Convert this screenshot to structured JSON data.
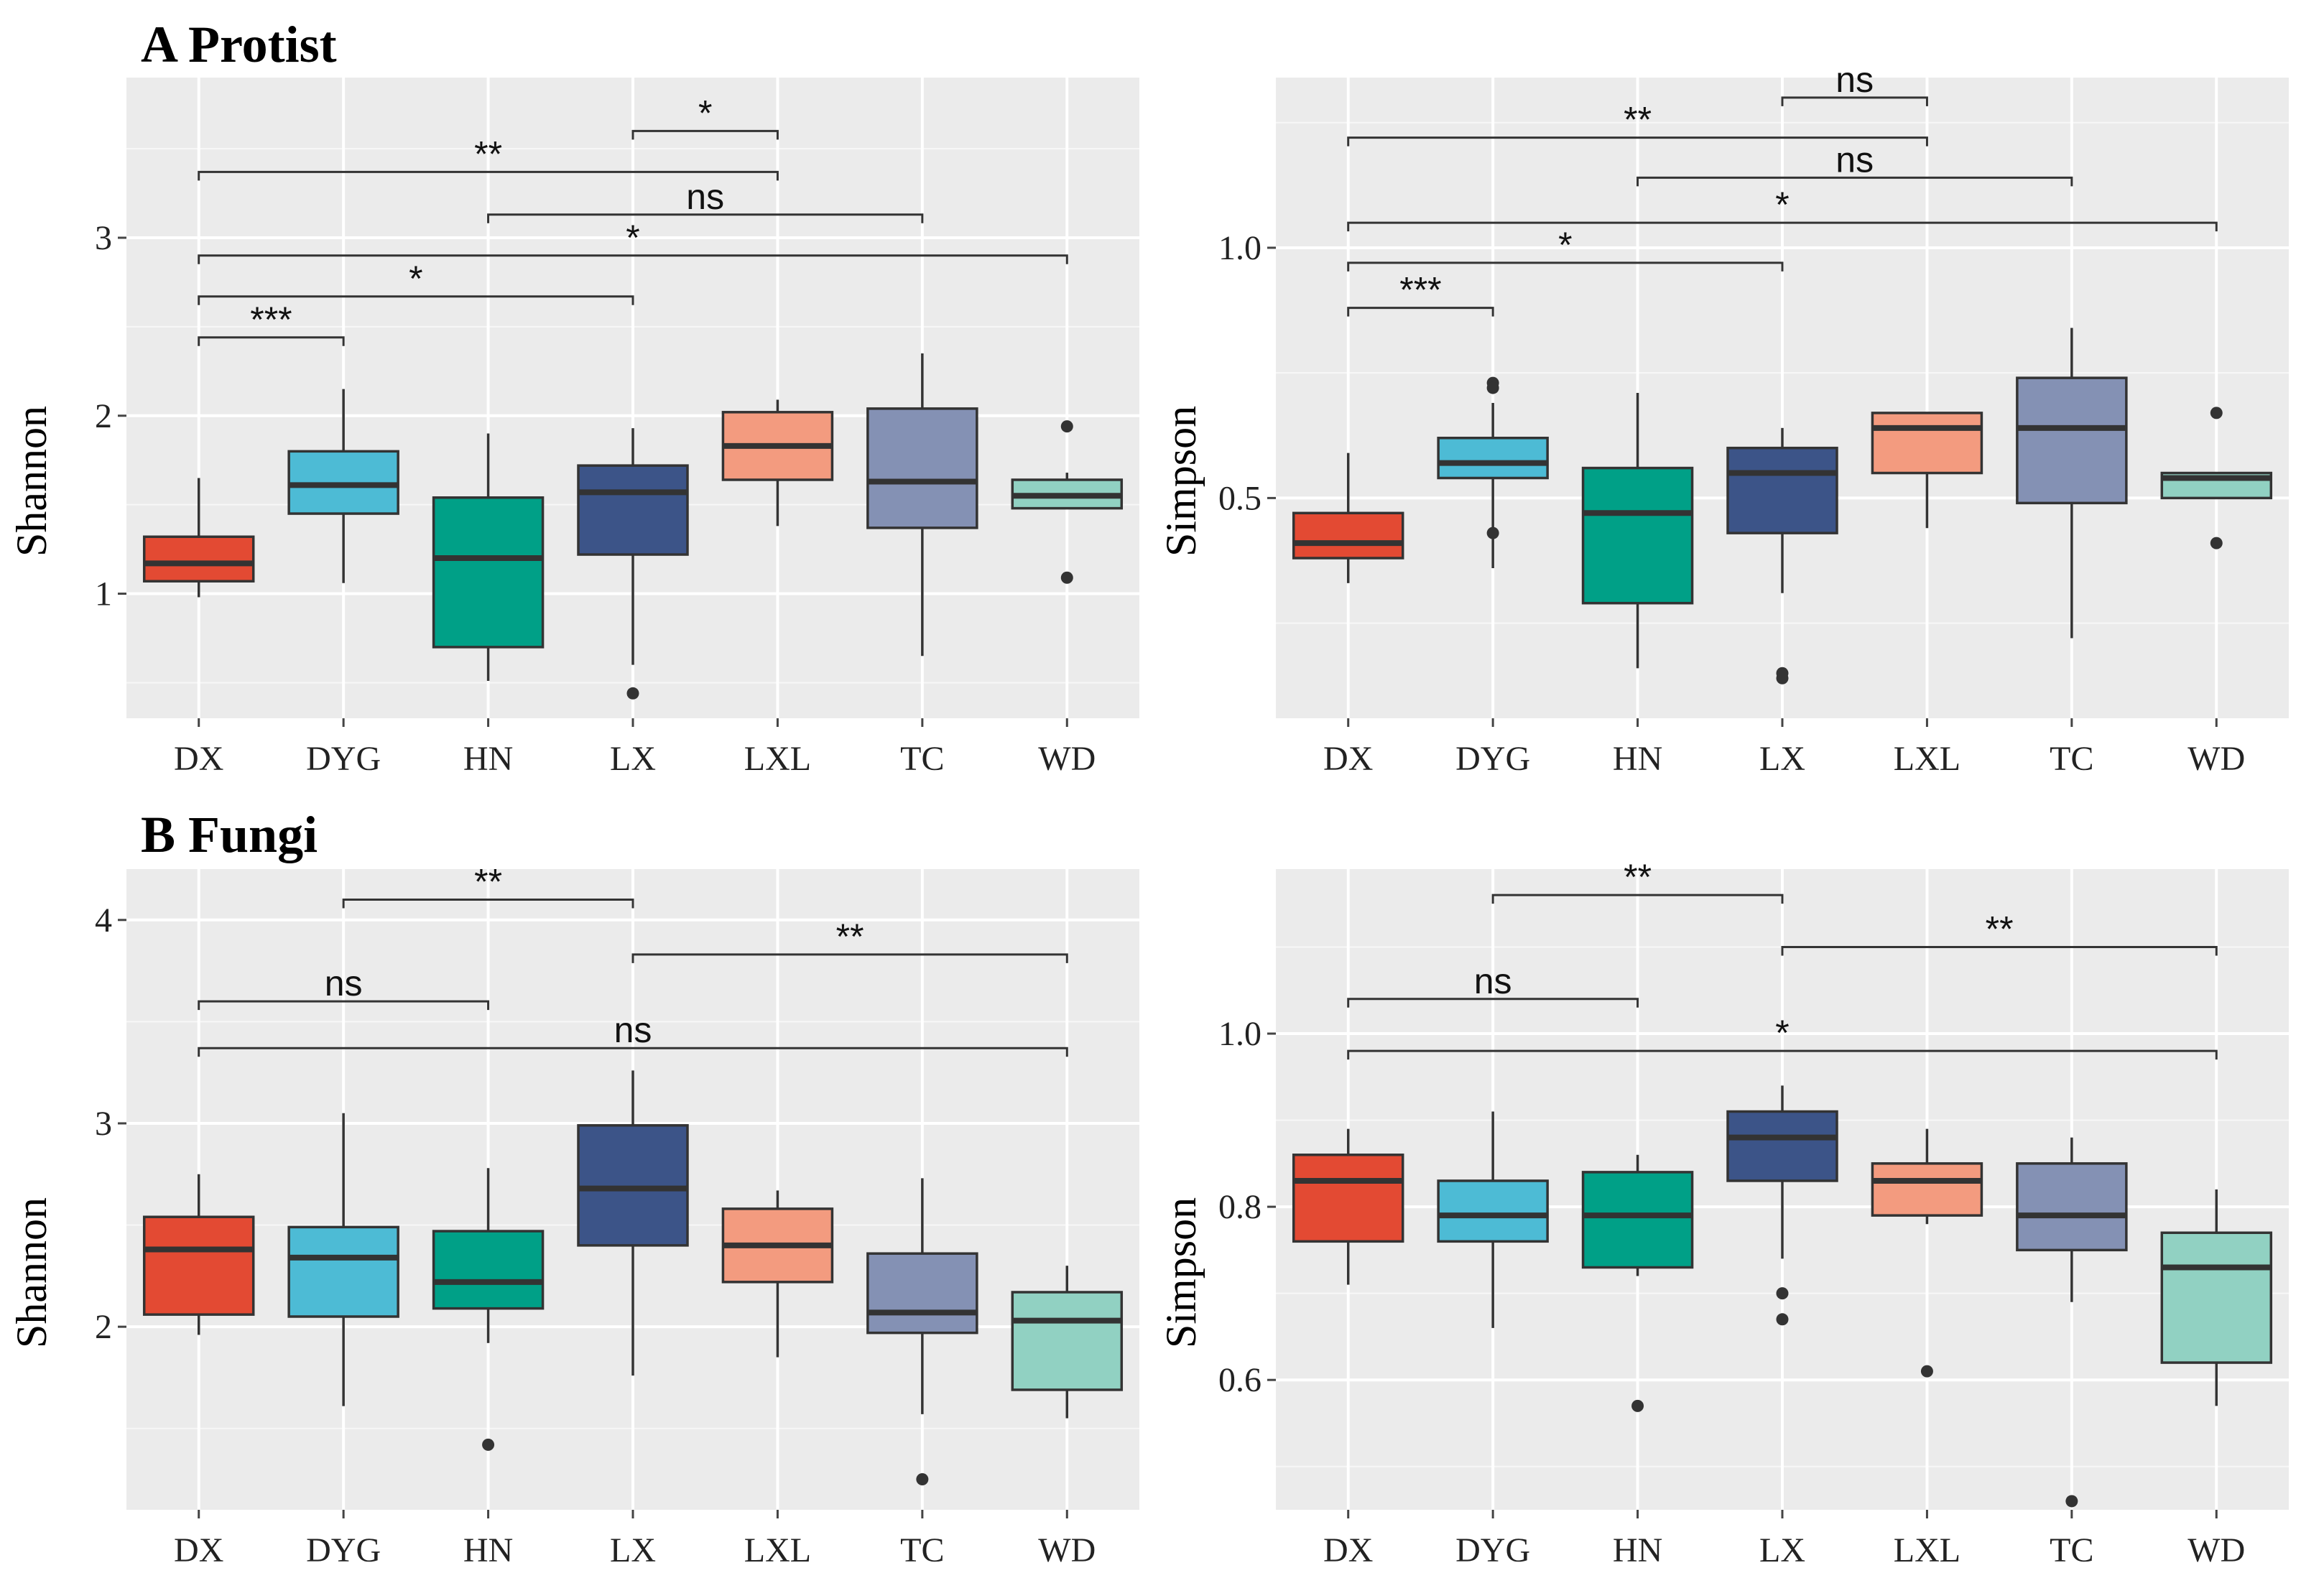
{
  "figure": {
    "sections": [
      {
        "label": "A Protist"
      },
      {
        "label": "B Fungi"
      }
    ]
  },
  "chart_data": [
    {
      "type": "boxplot",
      "panel": "A Protist",
      "ylabel": "Shannon",
      "ylim": [
        0.3,
        3.9
      ],
      "yticks": [
        1,
        2,
        3
      ],
      "grid": true,
      "categories": [
        "DX",
        "DYG",
        "HN",
        "LX",
        "LXL",
        "TC",
        "WD"
      ],
      "colors": [
        "#E34A33",
        "#4DBBD5",
        "#00A087",
        "#3C5488",
        "#F39B7F",
        "#8491B4",
        "#91D1C2"
      ],
      "boxes": [
        {
          "min": 0.98,
          "q1": 1.07,
          "median": 1.17,
          "q3": 1.32,
          "max": 1.65,
          "outliers": []
        },
        {
          "min": 1.06,
          "q1": 1.45,
          "median": 1.61,
          "q3": 1.8,
          "max": 2.15,
          "outliers": []
        },
        {
          "min": 0.51,
          "q1": 0.7,
          "median": 1.2,
          "q3": 1.54,
          "max": 1.9,
          "outliers": []
        },
        {
          "min": 0.6,
          "q1": 1.22,
          "median": 1.57,
          "q3": 1.72,
          "max": 1.93,
          "outliers": [
            0.44
          ]
        },
        {
          "min": 1.38,
          "q1": 1.64,
          "median": 1.83,
          "q3": 2.02,
          "max": 2.09,
          "outliers": []
        },
        {
          "min": 0.65,
          "q1": 1.37,
          "median": 1.63,
          "q3": 2.04,
          "max": 2.35,
          "outliers": []
        },
        {
          "min": 1.48,
          "q1": 1.48,
          "median": 1.55,
          "q3": 1.64,
          "max": 1.68,
          "outliers": [
            1.94,
            1.09
          ]
        }
      ],
      "comparisons": [
        {
          "from": "LX",
          "to": "LXL",
          "label": "*",
          "y": 3.6
        },
        {
          "from": "DX",
          "to": "LXL",
          "label": "**",
          "y": 3.37
        },
        {
          "from": "HN",
          "to": "TC",
          "label": "ns",
          "y": 3.13
        },
        {
          "from": "DX",
          "to": "WD",
          "label": "*",
          "y": 2.9
        },
        {
          "from": "DX",
          "to": "LX",
          "label": "*",
          "y": 2.67
        },
        {
          "from": "DX",
          "to": "DYG",
          "label": "***",
          "y": 2.44
        }
      ]
    },
    {
      "type": "boxplot",
      "panel": "A Protist",
      "ylabel": "Simpson",
      "ylim": [
        0.06,
        1.34
      ],
      "yticks": [
        0.5,
        1.0
      ],
      "ytick_labels": [
        "0.5",
        "1.0"
      ],
      "grid": true,
      "categories": [
        "DX",
        "DYG",
        "HN",
        "LX",
        "LXL",
        "TC",
        "WD"
      ],
      "colors": [
        "#E34A33",
        "#4DBBD5",
        "#00A087",
        "#3C5488",
        "#F39B7F",
        "#8491B4",
        "#91D1C2"
      ],
      "boxes": [
        {
          "min": 0.33,
          "q1": 0.38,
          "median": 0.41,
          "q3": 0.47,
          "max": 0.59,
          "outliers": []
        },
        {
          "min": 0.36,
          "q1": 0.54,
          "median": 0.57,
          "q3": 0.62,
          "max": 0.69,
          "outliers": [
            0.73,
            0.72,
            0.43
          ]
        },
        {
          "min": 0.16,
          "q1": 0.29,
          "median": 0.47,
          "q3": 0.56,
          "max": 0.71,
          "outliers": []
        },
        {
          "min": 0.31,
          "q1": 0.43,
          "median": 0.55,
          "q3": 0.6,
          "max": 0.64,
          "outliers": [
            0.15,
            0.14
          ]
        },
        {
          "min": 0.44,
          "q1": 0.55,
          "median": 0.64,
          "q3": 0.67,
          "max": 0.67,
          "outliers": []
        },
        {
          "min": 0.22,
          "q1": 0.49,
          "median": 0.64,
          "q3": 0.74,
          "max": 0.84,
          "outliers": []
        },
        {
          "min": 0.5,
          "q1": 0.5,
          "median": 0.54,
          "q3": 0.55,
          "max": 0.55,
          "outliers": [
            0.67,
            0.41
          ]
        }
      ],
      "comparisons": [
        {
          "from": "LX",
          "to": "LXL",
          "label": "ns",
          "y": 1.3
        },
        {
          "from": "DX",
          "to": "LXL",
          "label": "**",
          "y": 1.22
        },
        {
          "from": "HN",
          "to": "TC",
          "label": "ns",
          "y": 1.14
        },
        {
          "from": "DX",
          "to": "WD",
          "label": "*",
          "y": 1.05
        },
        {
          "from": "DX",
          "to": "LX",
          "label": "*",
          "y": 0.97
        },
        {
          "from": "DX",
          "to": "DYG",
          "label": "***",
          "y": 0.88
        }
      ]
    },
    {
      "type": "boxplot",
      "panel": "B Fungi",
      "ylabel": "Shannon",
      "ylim": [
        1.1,
        4.25
      ],
      "yticks": [
        2,
        3,
        4
      ],
      "grid": true,
      "categories": [
        "DX",
        "DYG",
        "HN",
        "LX",
        "LXL",
        "TC",
        "WD"
      ],
      "colors": [
        "#E34A33",
        "#4DBBD5",
        "#00A087",
        "#3C5488",
        "#F39B7F",
        "#8491B4",
        "#91D1C2"
      ],
      "boxes": [
        {
          "min": 1.96,
          "q1": 2.06,
          "median": 2.38,
          "q3": 2.54,
          "max": 2.75,
          "outliers": []
        },
        {
          "min": 1.61,
          "q1": 2.05,
          "median": 2.34,
          "q3": 2.49,
          "max": 3.05,
          "outliers": []
        },
        {
          "min": 1.92,
          "q1": 2.09,
          "median": 2.22,
          "q3": 2.47,
          "max": 2.78,
          "outliers": [
            1.42
          ]
        },
        {
          "min": 1.76,
          "q1": 2.4,
          "median": 2.68,
          "q3": 2.99,
          "max": 3.26,
          "outliers": []
        },
        {
          "min": 1.85,
          "q1": 2.22,
          "median": 2.4,
          "q3": 2.58,
          "max": 2.67,
          "outliers": []
        },
        {
          "min": 1.57,
          "q1": 1.97,
          "median": 2.07,
          "q3": 2.36,
          "max": 2.73,
          "outliers": [
            1.25
          ]
        },
        {
          "min": 1.55,
          "q1": 1.69,
          "median": 2.03,
          "q3": 2.17,
          "max": 2.3,
          "outliers": []
        }
      ],
      "comparisons": [
        {
          "from": "DYG",
          "to": "LX",
          "label": "**",
          "y": 4.1
        },
        {
          "from": "LX",
          "to": "WD",
          "label": "**",
          "y": 3.83
        },
        {
          "from": "DX",
          "to": "HN",
          "label": "ns",
          "y": 3.6
        },
        {
          "from": "DX",
          "to": "WD",
          "label": "ns",
          "y": 3.37
        }
      ]
    },
    {
      "type": "boxplot",
      "panel": "B Fungi",
      "ylabel": "Simpson",
      "ylim": [
        0.45,
        1.19
      ],
      "yticks": [
        0.6,
        0.8,
        1.0
      ],
      "ytick_labels": [
        "0.6",
        "0.8",
        "1.0"
      ],
      "grid": true,
      "categories": [
        "DX",
        "DYG",
        "HN",
        "LX",
        "LXL",
        "TC",
        "WD"
      ],
      "colors": [
        "#E34A33",
        "#4DBBD5",
        "#00A087",
        "#3C5488",
        "#F39B7F",
        "#8491B4",
        "#91D1C2"
      ],
      "boxes": [
        {
          "min": 0.71,
          "q1": 0.76,
          "median": 0.83,
          "q3": 0.86,
          "max": 0.89,
          "outliers": []
        },
        {
          "min": 0.66,
          "q1": 0.76,
          "median": 0.79,
          "q3": 0.83,
          "max": 0.91,
          "outliers": []
        },
        {
          "min": 0.72,
          "q1": 0.73,
          "median": 0.79,
          "q3": 0.84,
          "max": 0.86,
          "outliers": [
            0.57
          ]
        },
        {
          "min": 0.74,
          "q1": 0.83,
          "median": 0.88,
          "q3": 0.91,
          "max": 0.94,
          "outliers": [
            0.7,
            0.67
          ]
        },
        {
          "min": 0.78,
          "q1": 0.79,
          "median": 0.83,
          "q3": 0.85,
          "max": 0.89,
          "outliers": [
            0.61
          ]
        },
        {
          "min": 0.69,
          "q1": 0.75,
          "median": 0.79,
          "q3": 0.85,
          "max": 0.88,
          "outliers": [
            0.46
          ]
        },
        {
          "min": 0.57,
          "q1": 0.62,
          "median": 0.73,
          "q3": 0.77,
          "max": 0.82,
          "outliers": []
        }
      ],
      "comparisons": [
        {
          "from": "DYG",
          "to": "LX",
          "label": "**",
          "y": 1.16
        },
        {
          "from": "LX",
          "to": "WD",
          "label": "**",
          "y": 1.1
        },
        {
          "from": "DX",
          "to": "HN",
          "label": "ns",
          "y": 1.04
        },
        {
          "from": "DX",
          "to": "WD",
          "label": "*",
          "y": 0.98
        }
      ]
    }
  ]
}
